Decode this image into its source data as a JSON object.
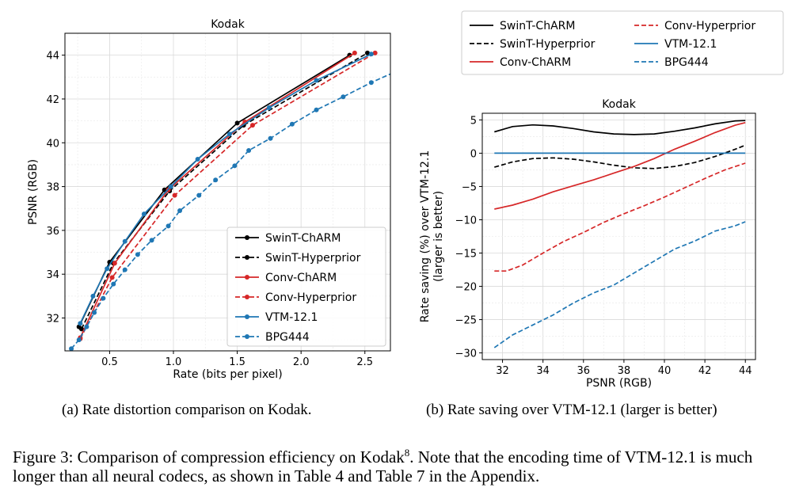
{
  "chart_data": [
    {
      "type": "line",
      "title": "Kodak",
      "xlabel": "Rate (bits per pixel)",
      "ylabel": "PSNR (RGB)",
      "xlim": [
        0.15,
        2.7
      ],
      "ylim": [
        30.5,
        45.0
      ],
      "xticks": [
        0.5,
        1.0,
        1.5,
        2.0,
        2.5
      ],
      "xtick_labels": [
        "0.5",
        "1.0",
        "1.5",
        "2.0",
        "2.5"
      ],
      "yticks": [
        32,
        34,
        36,
        38,
        40,
        42,
        44
      ],
      "ytick_labels": [
        "32",
        "34",
        "36",
        "38",
        "40",
        "42",
        "44"
      ],
      "grid": true,
      "legend_position": "lower-right",
      "series": [
        {
          "name": "SwinT-ChARM",
          "color": "#000000",
          "dash": "solid",
          "markers": true,
          "x": [
            0.26,
            0.5,
            0.93,
            1.5,
            2.38
          ],
          "y": [
            31.6,
            34.55,
            37.85,
            40.9,
            44.0
          ]
        },
        {
          "name": "SwinT-Hyperprior",
          "color": "#000000",
          "dash": "dashed",
          "markers": true,
          "x": [
            0.28,
            0.53,
            0.97,
            1.55,
            2.52
          ],
          "y": [
            31.5,
            34.5,
            37.8,
            40.8,
            44.1
          ]
        },
        {
          "name": "Conv-ChARM",
          "color": "#d62728",
          "dash": "solid",
          "markers": true,
          "x": [
            0.27,
            0.54,
            0.96,
            1.56,
            2.42
          ],
          "y": [
            31.1,
            34.5,
            37.85,
            40.95,
            44.1
          ]
        },
        {
          "name": "Conv-Hyperprior",
          "color": "#d62728",
          "dash": "dashed",
          "markers": true,
          "x": [
            0.27,
            0.52,
            1.01,
            1.62,
            2.58
          ],
          "y": [
            31.05,
            33.85,
            37.6,
            40.8,
            44.1
          ]
        },
        {
          "name": "VTM-12.1",
          "color": "#1f77b4",
          "dash": "solid",
          "markers": true,
          "x": [
            0.27,
            0.37,
            0.48,
            0.62,
            0.77,
            0.98,
            1.19,
            1.44,
            1.75,
            2.12,
            2.55
          ],
          "y": [
            31.75,
            33.0,
            34.25,
            35.5,
            36.75,
            38.0,
            39.25,
            40.4,
            41.6,
            42.85,
            44.05
          ]
        },
        {
          "name": "BPG444",
          "color": "#1f77b4",
          "dash": "dashed",
          "markers": true,
          "x": [
            0.2,
            0.26,
            0.32,
            0.38,
            0.45,
            0.53,
            0.62,
            0.72,
            0.83,
            0.96,
            1.05,
            1.2,
            1.33,
            1.48,
            1.59,
            1.76,
            1.93,
            2.12,
            2.33,
            2.55,
            2.8
          ],
          "y": [
            30.6,
            31.0,
            31.6,
            32.25,
            32.9,
            33.55,
            34.2,
            34.9,
            35.55,
            36.2,
            36.9,
            37.6,
            38.3,
            38.95,
            39.65,
            40.2,
            40.85,
            41.5,
            42.1,
            42.75,
            43.4
          ]
        }
      ]
    },
    {
      "type": "line",
      "title": "Kodak",
      "xlabel": "PSNR (RGB)",
      "ylabel": "Rate saving (%) over VTM-12.1\n(larger is better)",
      "xlim": [
        31.0,
        44.5
      ],
      "ylim": [
        -31.0,
        6.0
      ],
      "xticks": [
        32,
        34,
        36,
        38,
        40,
        42,
        44
      ],
      "xtick_labels": [
        "32",
        "34",
        "36",
        "38",
        "40",
        "42",
        "44"
      ],
      "yticks": [
        5,
        0,
        -5,
        -10,
        -15,
        -20,
        -25,
        -30
      ],
      "ytick_labels": [
        "5",
        "0",
        "−5",
        "−10",
        "−15",
        "−20",
        "−25",
        "−30"
      ],
      "grid": true,
      "legend_position": "top (outside)",
      "series": [
        {
          "name": "SwinT-ChARM",
          "color": "#000000",
          "dash": "solid",
          "x": [
            31.6,
            32.5,
            33.5,
            34.5,
            35.5,
            36.5,
            37.5,
            38.5,
            39.5,
            40.5,
            41.5,
            42.5,
            43.5,
            44.0
          ],
          "y": [
            3.2,
            4.0,
            4.25,
            4.1,
            3.7,
            3.2,
            2.9,
            2.8,
            2.9,
            3.3,
            3.8,
            4.4,
            4.85,
            4.9
          ]
        },
        {
          "name": "SwinT-Hyperprior",
          "color": "#000000",
          "dash": "dashed",
          "x": [
            31.6,
            32.5,
            33.5,
            34.5,
            35.5,
            36.5,
            37.5,
            38.5,
            39.5,
            40.5,
            41.5,
            42.5,
            43.5,
            44.0
          ],
          "y": [
            -2.1,
            -1.3,
            -0.8,
            -0.7,
            -0.9,
            -1.3,
            -1.8,
            -2.2,
            -2.3,
            -2.0,
            -1.4,
            -0.5,
            0.6,
            1.2
          ]
        },
        {
          "name": "Conv-ChARM",
          "color": "#d62728",
          "dash": "solid",
          "x": [
            31.6,
            32.5,
            33.5,
            34.5,
            35.5,
            36.5,
            37.5,
            38.5,
            39.5,
            40.5,
            41.5,
            42.5,
            43.5,
            44.0
          ],
          "y": [
            -8.4,
            -7.8,
            -6.9,
            -5.8,
            -4.9,
            -4.0,
            -3.0,
            -2.0,
            -0.8,
            0.6,
            1.8,
            3.1,
            4.2,
            4.6
          ]
        },
        {
          "name": "Conv-Hyperprior",
          "color": "#d62728",
          "dash": "dashed",
          "x": [
            31.6,
            32.2,
            33.0,
            34.0,
            35.0,
            36.0,
            37.0,
            38.0,
            39.0,
            40.0,
            41.0,
            42.0,
            43.0,
            44.0
          ],
          "y": [
            -17.7,
            -17.7,
            -16.8,
            -15.0,
            -13.3,
            -11.9,
            -10.4,
            -9.1,
            -7.9,
            -6.6,
            -5.2,
            -3.8,
            -2.5,
            -1.5
          ]
        },
        {
          "name": "VTM-12.1",
          "color": "#1f77b4",
          "dash": "solid",
          "x": [
            31.6,
            44.0
          ],
          "y": [
            0.0,
            0.0
          ]
        },
        {
          "name": "BPG444",
          "color": "#1f77b4",
          "dash": "dashed",
          "x": [
            31.6,
            32.5,
            33.5,
            34.5,
            35.5,
            36.5,
            37.5,
            38.5,
            39.5,
            40.5,
            41.5,
            42.5,
            43.5,
            44.0
          ],
          "y": [
            -29.2,
            -27.3,
            -25.8,
            -24.3,
            -22.5,
            -21.0,
            -19.8,
            -18.0,
            -16.2,
            -14.4,
            -13.2,
            -11.7,
            -10.9,
            -10.3
          ]
        }
      ]
    }
  ],
  "captions": {
    "left": "(a) Rate distortion comparison on Kodak.",
    "right": "(b) Rate saving over VTM-12.1 (larger is better)"
  },
  "figure_caption": {
    "prefix": "Figure 3: Comparison of compression efficiency on Kodak",
    "footnote_mark": "8",
    "suffix": ". Note that the encoding time of VTM-12.1 is much longer than all neural codecs, as shown in Table 4 and Table 7 in the Appendix."
  }
}
